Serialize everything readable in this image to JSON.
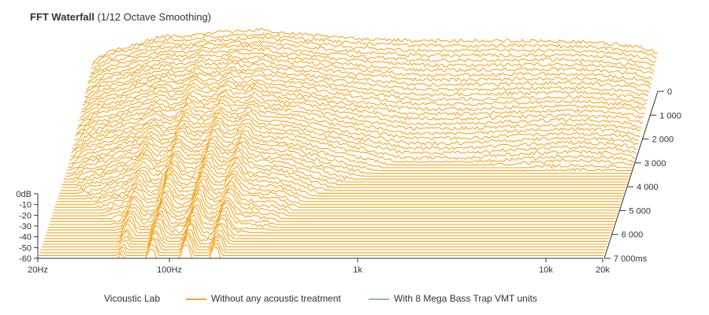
{
  "header": {
    "title": "FFT Waterfall",
    "subtitle": "(1/12 Octave Smoothing)"
  },
  "legend": {
    "brand": "Vicoustic Lab",
    "items": [
      {
        "label": "Without any acoustic treatment",
        "color": "#f5a623"
      },
      {
        "label": "With 8 Mega Bass Trap VMT units",
        "color": "#9fb3c2"
      }
    ]
  },
  "chart_data": {
    "type": "line",
    "title": "FFT Waterfall",
    "subtitle": "(1/12 Octave Smoothing)",
    "x_axis": {
      "scale": "log",
      "range": [
        20,
        20000
      ],
      "ticks": [
        {
          "value": 20,
          "label": "20Hz"
        },
        {
          "value": 100,
          "label": "100Hz"
        },
        {
          "value": 1000,
          "label": "1k"
        },
        {
          "value": 10000,
          "label": "10k"
        },
        {
          "value": 20000,
          "label": "20k"
        }
      ]
    },
    "y_axis": {
      "range": [
        -60,
        0
      ],
      "ticks": [
        {
          "value": 0,
          "label": "0dB"
        },
        {
          "value": -10,
          "label": "-10"
        },
        {
          "value": -20,
          "label": "-20"
        },
        {
          "value": -30,
          "label": "-30"
        },
        {
          "value": -40,
          "label": "-40"
        },
        {
          "value": -50,
          "label": "-50"
        },
        {
          "value": -60,
          "label": "-60"
        }
      ]
    },
    "z_axis": {
      "range": [
        0,
        7000
      ],
      "unit": "ms",
      "ticks": [
        {
          "value": 0,
          "label": "0"
        },
        {
          "value": 1000,
          "label": "1 000"
        },
        {
          "value": 2000,
          "label": "2 000"
        },
        {
          "value": 3000,
          "label": "3 000"
        },
        {
          "value": 4000,
          "label": "4 000"
        },
        {
          "value": 5000,
          "label": "5 000"
        },
        {
          "value": 6000,
          "label": "6 000"
        },
        {
          "value": 7000,
          "label": "7 000ms"
        }
      ]
    },
    "series": [
      {
        "name": "Without any acoustic treatment",
        "color": "#f5a623",
        "slice_count": 60,
        "decay_ms": 7000,
        "initial_response_db": [
          {
            "f": 20,
            "db": -32
          },
          {
            "f": 25,
            "db": -22
          },
          {
            "f": 32,
            "db": -18
          },
          {
            "f": 40,
            "db": -12
          },
          {
            "f": 50,
            "db": -8
          },
          {
            "f": 63,
            "db": -9
          },
          {
            "f": 80,
            "db": -6
          },
          {
            "f": 100,
            "db": -5
          },
          {
            "f": 125,
            "db": -4
          },
          {
            "f": 160,
            "db": -3
          },
          {
            "f": 200,
            "db": -5
          },
          {
            "f": 250,
            "db": -7
          },
          {
            "f": 315,
            "db": -8
          },
          {
            "f": 400,
            "db": -10
          },
          {
            "f": 500,
            "db": -11
          },
          {
            "f": 630,
            "db": -12
          },
          {
            "f": 800,
            "db": -12
          },
          {
            "f": 1000,
            "db": -13
          },
          {
            "f": 2000,
            "db": -13
          },
          {
            "f": 4000,
            "db": -13
          },
          {
            "f": 8000,
            "db": -14
          },
          {
            "f": 10000,
            "db": -15
          },
          {
            "f": 16000,
            "db": -19
          },
          {
            "f": 20000,
            "db": -24
          }
        ]
      }
    ],
    "grid": false,
    "legend_position": "bottom"
  }
}
